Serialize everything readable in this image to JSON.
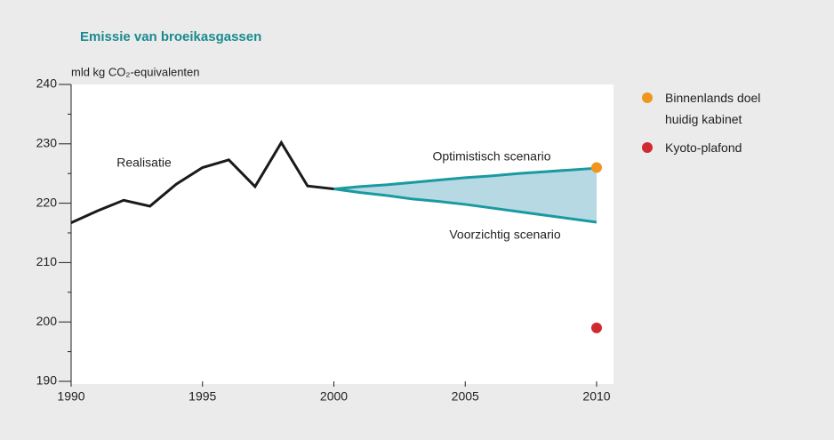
{
  "chart_data": {
    "type": "line",
    "title": "Emissie van broeikasgassen",
    "y_label": "mld kg CO₂-equivalenten",
    "xlim": [
      1990,
      2010
    ],
    "xticks": [
      1990,
      1995,
      2000,
      2005,
      2010
    ],
    "ylim": [
      190,
      240
    ],
    "yticks": [
      190,
      200,
      210,
      220,
      230,
      240
    ],
    "minor_yticks": [
      195,
      205,
      215,
      225,
      235
    ],
    "series": [
      {
        "name": "Realisatie",
        "color": "#1a1a1a",
        "x": [
          1990,
          1991,
          1992,
          1993,
          1994,
          1995,
          1996,
          1997,
          1998,
          1999,
          2000
        ],
        "values": [
          216.7,
          218.7,
          220.5,
          219.5,
          223.2,
          226.0,
          227.3,
          222.8,
          230.2,
          222.9,
          222.4
        ]
      },
      {
        "name": "Optimistisch scenario",
        "color": "#1a9aa0",
        "x": [
          2000,
          2001,
          2002,
          2003,
          2004,
          2005,
          2006,
          2007,
          2008,
          2009,
          2010
        ],
        "values": [
          222.4,
          222.8,
          223.1,
          223.5,
          223.9,
          224.3,
          224.6,
          225.0,
          225.3,
          225.6,
          225.9
        ]
      },
      {
        "name": "Voorzichtig scenario",
        "color": "#1a9aa0",
        "x": [
          2000,
          2001,
          2002,
          2003,
          2004,
          2005,
          2006,
          2007,
          2008,
          2009,
          2010
        ],
        "values": [
          222.4,
          221.8,
          221.3,
          220.7,
          220.3,
          219.8,
          219.2,
          218.6,
          218.0,
          217.4,
          216.8
        ]
      }
    ],
    "band_color": "#b6d9e4",
    "points": [
      {
        "name": "Binnenlands doel huidig kabinet",
        "color": "#f0961e",
        "x": 2010,
        "value": 226
      },
      {
        "name": "Kyoto-plafond",
        "color": "#d02a2e",
        "x": 2010,
        "value": 199
      }
    ]
  }
}
